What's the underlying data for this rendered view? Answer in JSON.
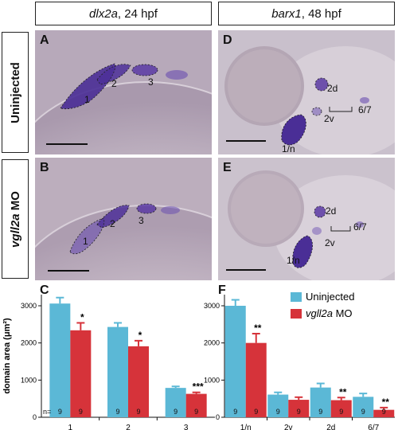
{
  "headers": {
    "left": {
      "gene": "dlx2a",
      "stage": ", 24 hpf"
    },
    "right": {
      "gene": "barx1",
      "stage": ", 48 hpf"
    }
  },
  "row_labels": {
    "top": "Uninjected",
    "bottom": {
      "gene": "vgll2a",
      "suffix": " MO"
    }
  },
  "panels": {
    "A": {
      "letter": "A",
      "labels": [
        "1",
        "2",
        "3"
      ]
    },
    "B": {
      "letter": "B",
      "labels": [
        "1",
        "2",
        "3"
      ]
    },
    "D": {
      "letter": "D",
      "labels": [
        "2d",
        "2v",
        "6/7",
        "1/n"
      ]
    },
    "E": {
      "letter": "E",
      "labels": [
        "2d",
        "6/7",
        "2v",
        "1/n"
      ]
    }
  },
  "colors": {
    "uninjected": "#5bb8d6",
    "vgll2a_mo": "#d6333a"
  },
  "chart_data": [
    {
      "letter": "C",
      "type": "bar",
      "ylabel": "domain area (μm²)",
      "ylim": [
        0,
        3300
      ],
      "yticks": [
        "0",
        "1000",
        "2000",
        "3000"
      ],
      "categories": [
        "1",
        "2",
        "3"
      ],
      "n_label": "n=",
      "series": [
        {
          "name": "Uninjected",
          "values": [
            3060,
            2430,
            790
          ],
          "errors": [
            160,
            110,
            40
          ],
          "n": [
            "9",
            "9",
            "9"
          ]
        },
        {
          "name": "vgll2a MO",
          "values": [
            2340,
            1910,
            630
          ],
          "errors": [
            200,
            150,
            40
          ],
          "n": [
            "9",
            "9",
            "9"
          ]
        }
      ],
      "significance": [
        "*",
        "*",
        "***"
      ]
    },
    {
      "letter": "F",
      "type": "bar",
      "ylim": [
        0,
        3300
      ],
      "yticks": [
        "0",
        "1000",
        "2000",
        "3000"
      ],
      "categories": [
        "1/n",
        "2v",
        "2d",
        "6/7"
      ],
      "series": [
        {
          "name": "Uninjected",
          "values": [
            3000,
            610,
            800,
            550
          ],
          "errors": [
            160,
            60,
            110,
            90
          ],
          "n": [
            "9",
            "9",
            "9",
            "9"
          ]
        },
        {
          "name": "vgll2a MO",
          "values": [
            2000,
            470,
            460,
            200
          ],
          "errors": [
            250,
            70,
            70,
            60
          ],
          "n": [
            "9",
            "9",
            "9",
            "9"
          ]
        }
      ],
      "significance": [
        "**",
        "",
        "**",
        "**"
      ]
    }
  ],
  "legend": {
    "uninjected": "Uninjected",
    "mo_gene": "vgll2a",
    "mo_suffix": " MO"
  }
}
